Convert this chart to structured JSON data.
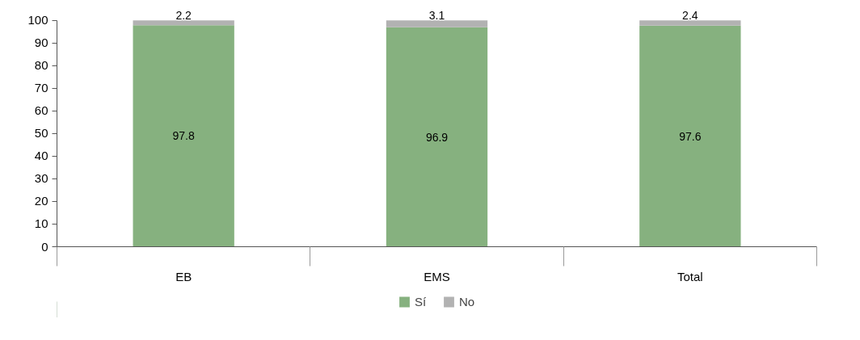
{
  "chart_data": {
    "type": "bar",
    "stacked": true,
    "categories": [
      "EB",
      "EMS",
      "Total"
    ],
    "series": [
      {
        "name": "Sí",
        "color": "#86b17f",
        "values": [
          97.8,
          96.9,
          97.6
        ]
      },
      {
        "name": "No",
        "color": "#b2b2b2",
        "values": [
          2.2,
          3.1,
          2.4
        ]
      }
    ],
    "ylim": [
      0,
      100
    ],
    "yticks": [
      0,
      10,
      20,
      30,
      40,
      50,
      60,
      70,
      80,
      90,
      100
    ],
    "grid": false,
    "legend": "bottom",
    "data_labels": true
  }
}
